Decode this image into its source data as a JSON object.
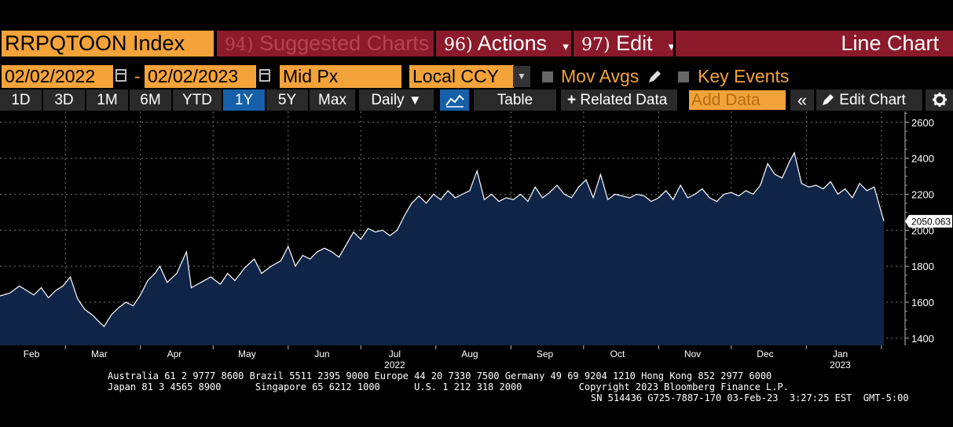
{
  "header": {
    "ticker": "RRPQTOON Index",
    "suggested_num": "94)",
    "suggested_label": "Suggested Charts",
    "actions_num": "96)",
    "actions_label": "Actions",
    "edit_num": "97)",
    "edit_label": "Edit",
    "chart_type": "Line Chart"
  },
  "options": {
    "start_date": "02/02/2022",
    "separator": "-",
    "end_date": "02/02/2023",
    "field": "Mid Px",
    "currency": "Local CCY",
    "mov_avgs": "Mov Avgs",
    "key_events": "Key Events"
  },
  "toolbar": {
    "periods": [
      "1D",
      "3D",
      "1M",
      "6M",
      "YTD",
      "1Y",
      "5Y",
      "Max"
    ],
    "active_period": "1Y",
    "frequency": "Daily",
    "table": "Table",
    "related_data": "Related Data",
    "add_data_placeholder": "Add Data",
    "rewind": "«",
    "edit_chart": "Edit Chart"
  },
  "colors": {
    "orange": "#f3a33a",
    "maroon": "#8b1a2a",
    "active_blue": "#1560a8",
    "fill": "#0f2447"
  },
  "footer": {
    "line1": "Australia 61 2 9777 8600 Brazil 5511 2395 9000 Europe 44 20 7330 7500 Germany 49 69 9204 1210 Hong Kong 852 2977 6000",
    "line2": "Japan 81 3 4565 8900      Singapore 65 6212 1000      U.S. 1 212 318 2000          Copyright 2023 Bloomberg Finance L.P.",
    "line3": "SN 514436 G725-7887-170 03-Feb-23  3:27:25 EST  GMT-5:00"
  },
  "chart_data": {
    "type": "area",
    "title": "",
    "xlabel": "",
    "ylabel": "",
    "ylim": [
      1360,
      2660
    ],
    "yticks": [
      1400,
      1600,
      1800,
      2000,
      2200,
      2400,
      2600
    ],
    "x_range": [
      "2022-02-02",
      "2023-02-02"
    ],
    "month_ticks": [
      {
        "label": "Feb",
        "date": "2022-02-15"
      },
      {
        "label": "Mar",
        "date": "2022-03-15"
      },
      {
        "label": "Apr",
        "date": "2022-04-15"
      },
      {
        "label": "May",
        "date": "2022-05-15"
      },
      {
        "label": "Jun",
        "date": "2022-06-15"
      },
      {
        "label": "Jul",
        "date": "2022-07-15"
      },
      {
        "label": "Aug",
        "date": "2022-08-15"
      },
      {
        "label": "Sep",
        "date": "2022-09-15"
      },
      {
        "label": "Oct",
        "date": "2022-10-15"
      },
      {
        "label": "Nov",
        "date": "2022-11-15"
      },
      {
        "label": "Dec",
        "date": "2022-12-15"
      },
      {
        "label": "Jan",
        "date": "2023-01-15"
      }
    ],
    "year_labels": [
      {
        "label": "2022",
        "date": "2022-07-15"
      },
      {
        "label": "2023",
        "date": "2023-01-15"
      }
    ],
    "last_value_label": "2050.063",
    "series": [
      {
        "points": [
          [
            "2022-02-02",
            1635
          ],
          [
            "2022-02-06",
            1650
          ],
          [
            "2022-02-10",
            1690
          ],
          [
            "2022-02-13",
            1665
          ],
          [
            "2022-02-16",
            1640
          ],
          [
            "2022-02-19",
            1680
          ],
          [
            "2022-02-22",
            1625
          ],
          [
            "2022-02-25",
            1665
          ],
          [
            "2022-02-28",
            1690
          ],
          [
            "2022-03-03",
            1740
          ],
          [
            "2022-03-06",
            1620
          ],
          [
            "2022-03-09",
            1560
          ],
          [
            "2022-03-12",
            1530
          ],
          [
            "2022-03-15",
            1490
          ],
          [
            "2022-03-17",
            1465
          ],
          [
            "2022-03-20",
            1530
          ],
          [
            "2022-03-23",
            1570
          ],
          [
            "2022-03-26",
            1600
          ],
          [
            "2022-03-29",
            1580
          ],
          [
            "2022-04-01",
            1640
          ],
          [
            "2022-04-04",
            1720
          ],
          [
            "2022-04-07",
            1760
          ],
          [
            "2022-04-09",
            1800
          ],
          [
            "2022-04-12",
            1710
          ],
          [
            "2022-04-16",
            1760
          ],
          [
            "2022-04-20",
            1880
          ],
          [
            "2022-04-22",
            1680
          ],
          [
            "2022-04-26",
            1710
          ],
          [
            "2022-04-30",
            1740
          ],
          [
            "2022-05-04",
            1700
          ],
          [
            "2022-05-07",
            1760
          ],
          [
            "2022-05-10",
            1720
          ],
          [
            "2022-05-14",
            1790
          ],
          [
            "2022-05-18",
            1840
          ],
          [
            "2022-05-21",
            1760
          ],
          [
            "2022-05-25",
            1800
          ],
          [
            "2022-05-29",
            1830
          ],
          [
            "2022-06-01",
            1910
          ],
          [
            "2022-06-04",
            1800
          ],
          [
            "2022-06-07",
            1860
          ],
          [
            "2022-06-10",
            1840
          ],
          [
            "2022-06-13",
            1880
          ],
          [
            "2022-06-16",
            1900
          ],
          [
            "2022-06-19",
            1880
          ],
          [
            "2022-06-22",
            1850
          ],
          [
            "2022-06-25",
            1920
          ],
          [
            "2022-06-28",
            1990
          ],
          [
            "2022-07-01",
            1950
          ],
          [
            "2022-07-04",
            2010
          ],
          [
            "2022-07-07",
            1990
          ],
          [
            "2022-07-10",
            2000
          ],
          [
            "2022-07-13",
            1970
          ],
          [
            "2022-07-16",
            2000
          ],
          [
            "2022-07-19",
            2080
          ],
          [
            "2022-07-22",
            2150
          ],
          [
            "2022-07-25",
            2190
          ],
          [
            "2022-07-28",
            2150
          ],
          [
            "2022-07-31",
            2200
          ],
          [
            "2022-08-03",
            2170
          ],
          [
            "2022-08-06",
            2220
          ],
          [
            "2022-08-09",
            2180
          ],
          [
            "2022-08-12",
            2200
          ],
          [
            "2022-08-15",
            2220
          ],
          [
            "2022-08-18",
            2330
          ],
          [
            "2022-08-21",
            2170
          ],
          [
            "2022-08-24",
            2200
          ],
          [
            "2022-08-27",
            2160
          ],
          [
            "2022-08-30",
            2180
          ],
          [
            "2022-09-02",
            2170
          ],
          [
            "2022-09-05",
            2200
          ],
          [
            "2022-09-08",
            2160
          ],
          [
            "2022-09-11",
            2240
          ],
          [
            "2022-09-14",
            2180
          ],
          [
            "2022-09-17",
            2210
          ],
          [
            "2022-09-20",
            2250
          ],
          [
            "2022-09-23",
            2200
          ],
          [
            "2022-09-26",
            2180
          ],
          [
            "2022-09-29",
            2240
          ],
          [
            "2022-10-02",
            2280
          ],
          [
            "2022-10-05",
            2180
          ],
          [
            "2022-10-08",
            2310
          ],
          [
            "2022-10-11",
            2170
          ],
          [
            "2022-10-14",
            2200
          ],
          [
            "2022-10-17",
            2190
          ],
          [
            "2022-10-20",
            2180
          ],
          [
            "2022-10-23",
            2200
          ],
          [
            "2022-10-26",
            2190
          ],
          [
            "2022-10-29",
            2160
          ],
          [
            "2022-11-01",
            2180
          ],
          [
            "2022-11-04",
            2220
          ],
          [
            "2022-11-07",
            2170
          ],
          [
            "2022-11-10",
            2250
          ],
          [
            "2022-11-13",
            2180
          ],
          [
            "2022-11-16",
            2200
          ],
          [
            "2022-11-19",
            2230
          ],
          [
            "2022-11-22",
            2180
          ],
          [
            "2022-11-25",
            2160
          ],
          [
            "2022-11-28",
            2200
          ],
          [
            "2022-12-01",
            2210
          ],
          [
            "2022-12-04",
            2190
          ],
          [
            "2022-12-07",
            2220
          ],
          [
            "2022-12-10",
            2200
          ],
          [
            "2022-12-13",
            2250
          ],
          [
            "2022-12-16",
            2370
          ],
          [
            "2022-12-19",
            2310
          ],
          [
            "2022-12-22",
            2290
          ],
          [
            "2022-12-25",
            2380
          ],
          [
            "2022-12-27",
            2430
          ],
          [
            "2022-12-30",
            2260
          ],
          [
            "2023-01-02",
            2240
          ],
          [
            "2023-01-05",
            2250
          ],
          [
            "2023-01-08",
            2230
          ],
          [
            "2023-01-11",
            2270
          ],
          [
            "2023-01-14",
            2200
          ],
          [
            "2023-01-17",
            2230
          ],
          [
            "2023-01-20",
            2180
          ],
          [
            "2023-01-23",
            2260
          ],
          [
            "2023-01-26",
            2220
          ],
          [
            "2023-01-29",
            2240
          ],
          [
            "2023-02-02",
            2050.063
          ]
        ]
      }
    ]
  }
}
